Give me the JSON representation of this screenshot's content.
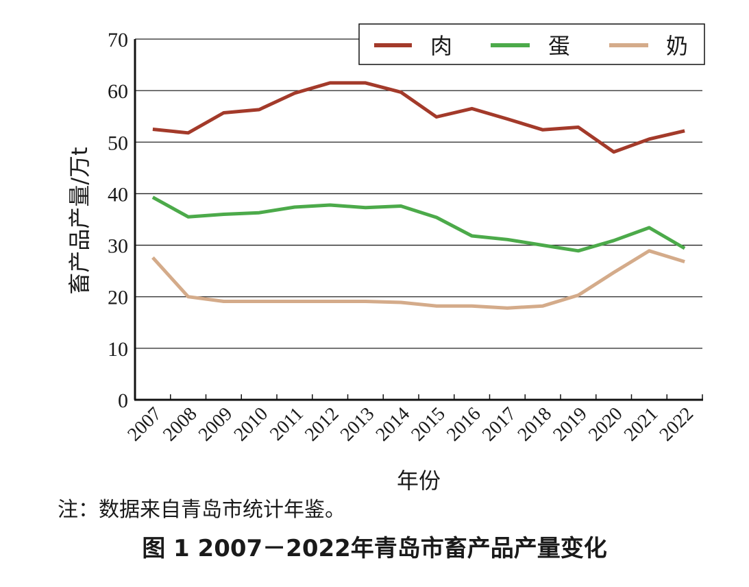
{
  "chart_data": {
    "type": "line",
    "title": "",
    "xlabel": "年份",
    "ylabel": "畜产品产量/万t",
    "ylim": [
      0,
      70
    ],
    "yticks": [
      0,
      10,
      20,
      30,
      40,
      50,
      60,
      70
    ],
    "grid": "horizontal",
    "legend_position": "top-right",
    "categories": [
      "2007",
      "2008",
      "2009",
      "2010",
      "2011",
      "2012",
      "2013",
      "2014",
      "2015",
      "2016",
      "2017",
      "2018",
      "2019",
      "2020",
      "2021",
      "2022"
    ],
    "series": [
      {
        "name": "肉",
        "color": "#a33a2a",
        "values": [
          52.5,
          51.8,
          55.7,
          56.3,
          59.5,
          61.5,
          61.5,
          59.7,
          54.9,
          56.5,
          54.5,
          52.4,
          52.9,
          48.1,
          50.6,
          52.2
        ]
      },
      {
        "name": "蛋",
        "color": "#4caa4a",
        "values": [
          39.3,
          35.5,
          36.0,
          36.3,
          37.4,
          37.8,
          37.3,
          37.6,
          35.4,
          31.8,
          31.1,
          30.0,
          28.9,
          30.9,
          33.4,
          29.4
        ]
      },
      {
        "name": "奶",
        "color": "#d4ab8a",
        "values": [
          27.6,
          20.0,
          19.1,
          19.1,
          19.1,
          19.1,
          19.1,
          18.9,
          18.2,
          18.2,
          17.8,
          18.2,
          20.3,
          24.7,
          28.9,
          26.8
        ]
      }
    ]
  },
  "note": "注：数据来自青岛市统计年鉴。",
  "caption": "图 1 2007－2022年青岛市畜产品产量变化"
}
